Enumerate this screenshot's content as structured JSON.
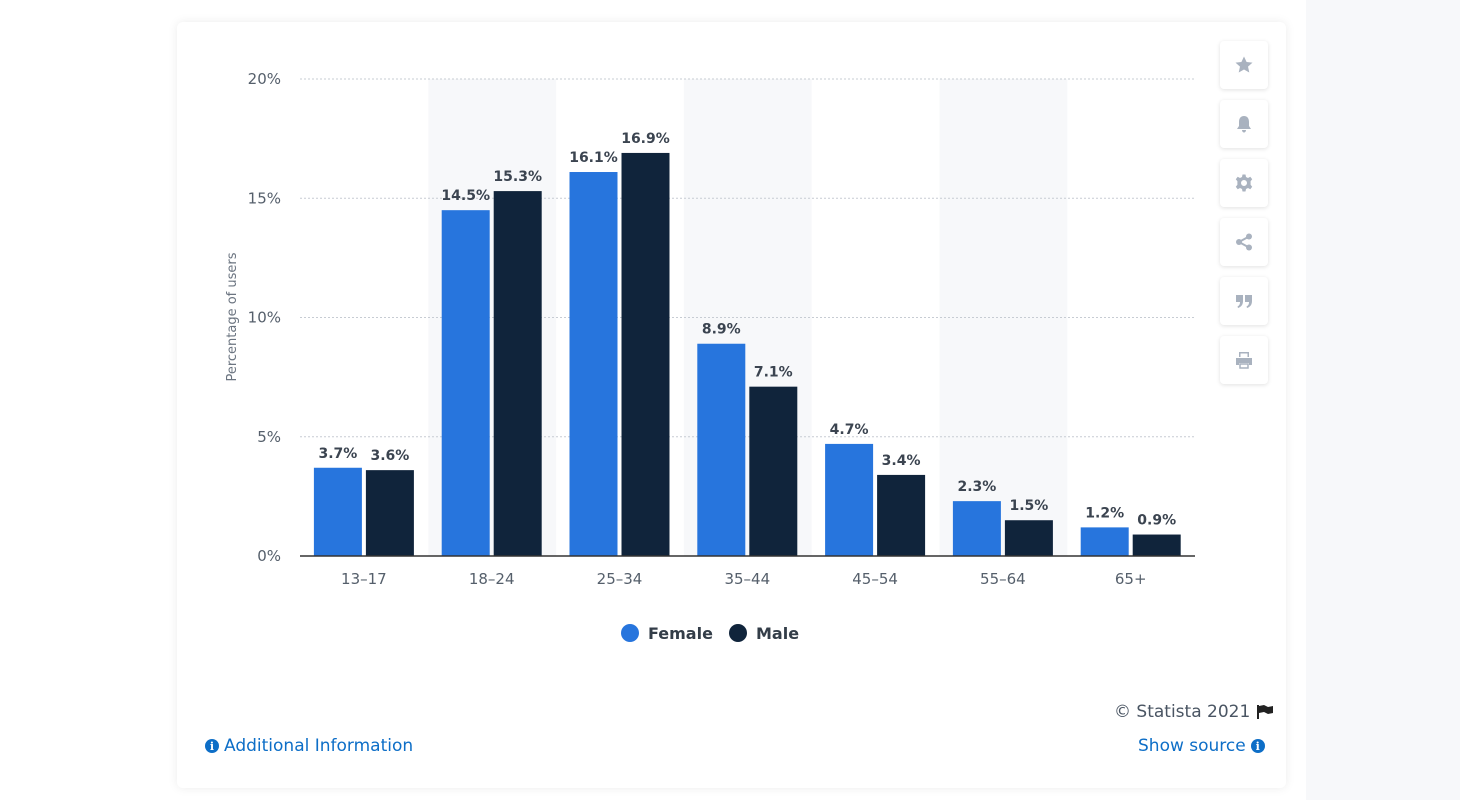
{
  "chart_data": {
    "type": "bar",
    "categories": [
      "13-17",
      "18-24",
      "25-34",
      "35-44",
      "45-54",
      "55-64",
      "65+"
    ],
    "series": [
      {
        "name": "Female",
        "color": "#2775dd",
        "values": [
          3.7,
          14.5,
          16.1,
          8.9,
          4.7,
          2.3,
          1.2
        ],
        "labels": [
          "3.7%",
          "14.5%",
          "16.1%",
          "8.9%",
          "4.7%",
          "2.3%",
          "1.2%"
        ]
      },
      {
        "name": "Male",
        "color": "#10243b",
        "values": [
          3.6,
          15.3,
          16.9,
          7.1,
          3.4,
          1.5,
          0.9
        ],
        "labels": [
          "3.6%",
          "15.3%",
          "16.9%",
          "7.1%",
          "3.4%",
          "1.5%",
          "0.9%"
        ]
      }
    ],
    "ylabel": "Percentage of users",
    "ylim": [
      0,
      20
    ],
    "yticks": [
      0,
      5,
      10,
      15,
      20
    ],
    "ytick_labels": [
      "0%",
      "5%",
      "10%",
      "15%",
      "20%"
    ],
    "grid": true,
    "legend": "bottom-center"
  },
  "toolbar": {
    "buttons": [
      "star-icon",
      "bell-icon",
      "gear-icon",
      "share-icon",
      "quote-icon",
      "print-icon"
    ]
  },
  "footer": {
    "copyright": "© Statista 2021",
    "additional_info": "Additional Information",
    "show_source": "Show source"
  }
}
